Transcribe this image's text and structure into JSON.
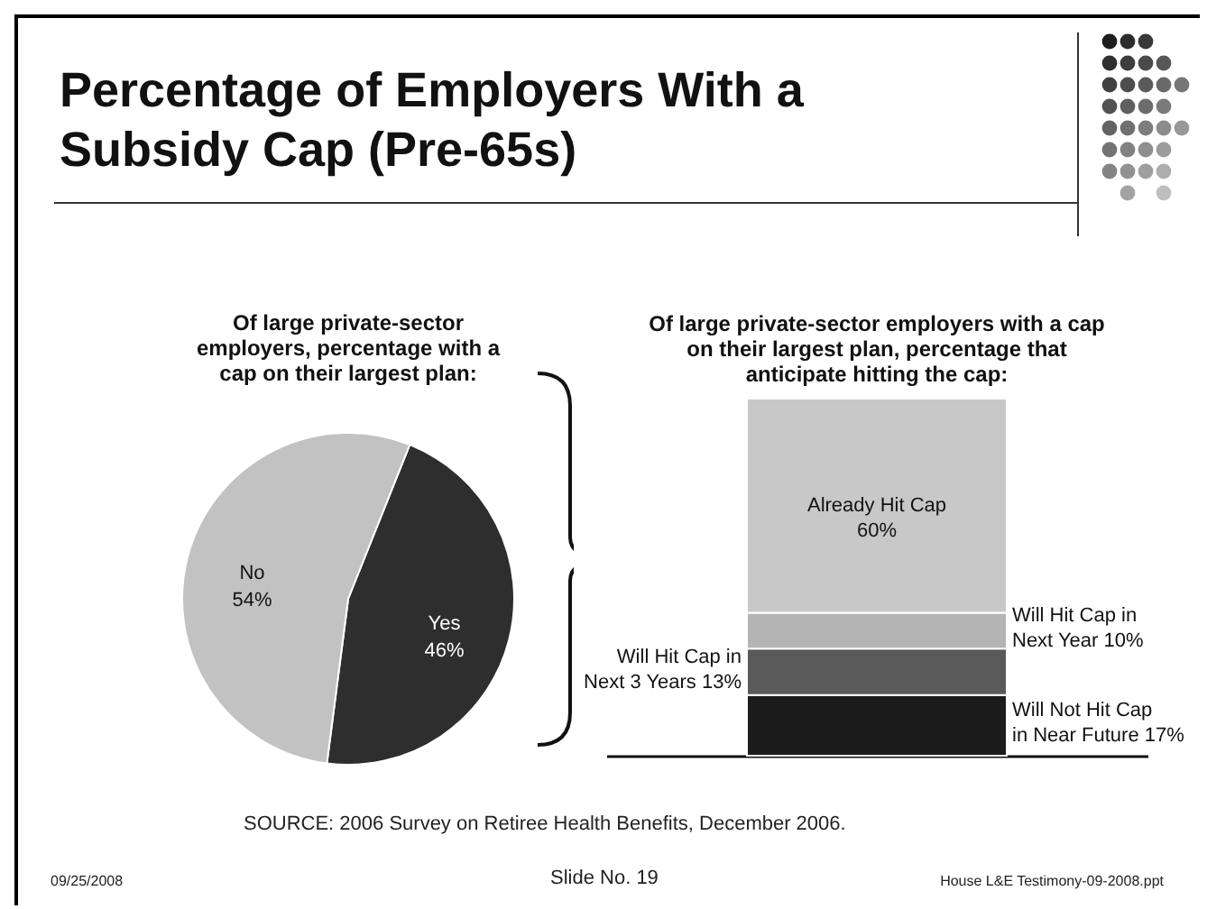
{
  "chart_data": [
    {
      "type": "pie",
      "title": "Percentage of Employers With a Subsidy Cap (Pre-65s)",
      "subtitle": "Of large private-sector employers, percentage with a cap on their largest plan:",
      "categories": [
        "Yes",
        "No"
      ],
      "values": [
        46,
        54
      ],
      "colors": [
        "#2e2e2e",
        "#c2c2c2"
      ],
      "value_labels": [
        "46%",
        "54%"
      ],
      "annotations": [
        "SOURCE: 2006 Survey on Retiree Health Benefits, December 2006.",
        "09/25/2008",
        "Slide No. 19",
        "House L&E Testimony-09-2008.ppt"
      ]
    },
    {
      "type": "bar",
      "title": "Of large private-sector employers with a cap on their largest plan, percentage that anticipate hitting the cap:",
      "stacked": true,
      "categories": [
        null
      ],
      "series": [
        {
          "name": "Will Not Hit Cap in Near Future",
          "color": "#1c1c1c",
          "values": [
            17
          ],
          "value_labels": [
            "17%"
          ]
        },
        {
          "name": "Will Hit Cap in Next 3 Years",
          "color": "#5a5a5a",
          "values": [
            13
          ],
          "value_labels": [
            "13%"
          ]
        },
        {
          "name": "Will Hit Cap in Next Year",
          "color": "#b4b4b4",
          "values": [
            10
          ],
          "value_labels": [
            "10%"
          ]
        },
        {
          "name": "Already Hit Cap",
          "color": "#c8c8c8",
          "values": [
            60
          ],
          "value_labels": [
            "60%"
          ]
        }
      ]
    }
  ]
}
